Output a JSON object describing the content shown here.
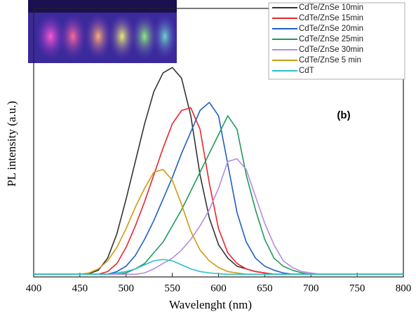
{
  "chart_data": {
    "type": "line",
    "xlabel": "Wavelenght (nm)",
    "ylabel": "PL intensity (a.u.)",
    "annotation": "(b)",
    "x": [
      400,
      410,
      420,
      430,
      440,
      450,
      460,
      470,
      480,
      490,
      500,
      510,
      520,
      530,
      540,
      550,
      560,
      570,
      580,
      590,
      600,
      610,
      620,
      630,
      640,
      650,
      660,
      670,
      680,
      690,
      700,
      710,
      720,
      730,
      740,
      750,
      760,
      770,
      780,
      790,
      800
    ],
    "xlim": [
      400,
      800
    ],
    "xticks": [
      400,
      450,
      500,
      550,
      600,
      650,
      700,
      750,
      800
    ],
    "ylim": [
      0,
      100
    ],
    "legend": "top-right",
    "series": [
      {
        "name": "CdTe/ZnSe 10min",
        "color": "#333333",
        "values": [
          1,
          1,
          1,
          1,
          1,
          1,
          1.2,
          2.5,
          7,
          16,
          29,
          43,
          57,
          69,
          76,
          78,
          74,
          60,
          38,
          22,
          12,
          7,
          4,
          3,
          2,
          1.5,
          1,
          1,
          1,
          1,
          1,
          1,
          1,
          1,
          1,
          1,
          1,
          1,
          1,
          1,
          1
        ]
      },
      {
        "name": "CdTe/ZnSe 15min",
        "color": "#e8262a",
        "values": [
          1,
          1,
          1,
          1,
          1,
          1,
          1,
          1,
          2,
          5,
          11,
          19,
          28,
          38,
          48,
          57,
          62,
          63,
          55,
          35,
          18,
          9,
          5,
          3,
          2,
          1.5,
          1,
          1,
          1,
          1,
          1,
          1,
          1,
          1,
          1,
          1,
          1,
          1,
          1,
          1,
          1
        ]
      },
      {
        "name": "CdTe/ZnSe 20min",
        "color": "#1f5fc4",
        "values": [
          1,
          1,
          1,
          1,
          1,
          1,
          1,
          1,
          1,
          2,
          4,
          8,
          14,
          21,
          29,
          37,
          46,
          54,
          62,
          65,
          60,
          42,
          24,
          13,
          7,
          4,
          2.5,
          1.5,
          1,
          1,
          1,
          1,
          1,
          1,
          1,
          1,
          1,
          1,
          1,
          1,
          1
        ]
      },
      {
        "name": "CdTe/ZnSe 25min",
        "color": "#1f9a5a",
        "values": [
          1,
          1,
          1,
          1,
          1,
          1,
          1,
          1,
          1,
          1,
          1.5,
          3,
          5,
          9,
          13,
          19,
          25,
          32,
          39,
          46,
          53,
          60,
          55,
          38,
          25,
          14,
          7,
          4,
          2.5,
          1.5,
          1,
          1,
          1,
          1,
          1,
          1,
          1,
          1,
          1,
          1,
          1
        ]
      },
      {
        "name": "CdTe/ZnSe 30min",
        "color": "#b58be0",
        "values": [
          1,
          1,
          1,
          1,
          1,
          1,
          1,
          1,
          1,
          1,
          1,
          1,
          1.5,
          3,
          5,
          7,
          10,
          14,
          19,
          25,
          33,
          43,
          44,
          40,
          30,
          20,
          12,
          6,
          3.5,
          2,
          1.5,
          1,
          1,
          1,
          1,
          1,
          1,
          1,
          1,
          1,
          1
        ]
      },
      {
        "name": "CdTe/ZnSe 5 min",
        "color": "#d09a10",
        "values": [
          1,
          1,
          1,
          1,
          1,
          1,
          1.5,
          3,
          6,
          11,
          18,
          26,
          33,
          39,
          40,
          36,
          27,
          17,
          10,
          6,
          3.5,
          2,
          1.5,
          1,
          1,
          1,
          1,
          1,
          1,
          1,
          1,
          1,
          1,
          1,
          1,
          1,
          1,
          1,
          1,
          1,
          1
        ]
      },
      {
        "name": "CdT",
        "color": "#2bbfc9",
        "values": [
          1,
          1,
          1,
          1,
          1,
          1,
          1,
          1,
          1,
          1.5,
          2,
          3,
          4.5,
          6,
          6.5,
          6,
          4.5,
          3,
          2,
          1.5,
          1.2,
          1,
          1,
          1,
          1,
          1,
          1,
          1,
          1,
          1,
          1,
          1,
          1,
          1,
          1,
          1,
          1,
          1,
          1,
          1,
          1
        ]
      }
    ]
  }
}
